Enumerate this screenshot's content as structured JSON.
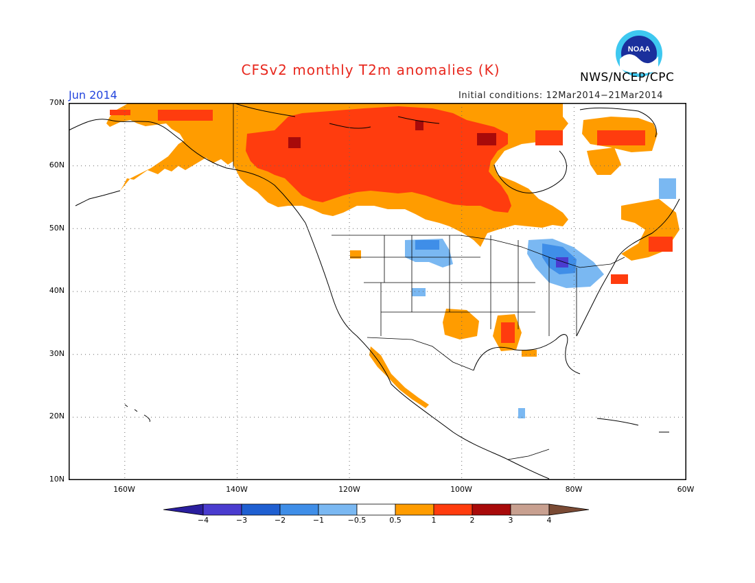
{
  "title": "CFSv2 monthly T2m anomalies (K)",
  "agency": "NWS/NCEP/CPC",
  "logo_text": "NOAA",
  "month": "Jun 2014",
  "initial_conditions": "Initial conditions: 12Mar2014−21Mar2014",
  "lat_labels": [
    "70N",
    "60N",
    "50N",
    "40N",
    "30N",
    "20N",
    "10N"
  ],
  "lon_labels": [
    "160W",
    "140W",
    "120W",
    "100W",
    "80W",
    "60W"
  ],
  "colorbar": {
    "labels": [
      "−4",
      "−3",
      "−2",
      "−1",
      "−0.5",
      "0.5",
      "1",
      "2",
      "3",
      "4"
    ],
    "colors": [
      "#2a1e9e",
      "#4a3ccf",
      "#1f5fd1",
      "#3f8ee8",
      "#7ab8f2",
      "#ffffff",
      "#ff9c00",
      "#ff3c0e",
      "#a80a0a",
      "#c8a090",
      "#7a4a34"
    ]
  },
  "colors": {
    "title": "#e8281e",
    "month": "#2244dd",
    "orange": "#ff9c00",
    "red": "#ff3c0e",
    "darkred": "#a80a0a",
    "lightblue": "#7ab8f2",
    "blue": "#3f8ee8",
    "darkblue": "#1f5fd1",
    "purple": "#4a3ccf"
  }
}
